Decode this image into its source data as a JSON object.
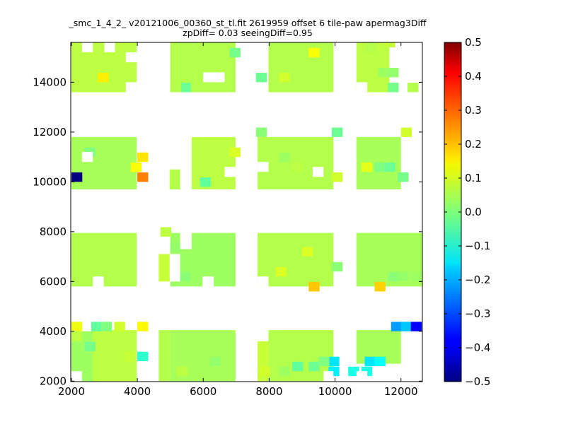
{
  "chart_data": {
    "type": "heatmap",
    "title": "_smc_1_4_2_ v20121006_00360_st_tl.fit 2619959 offset 6 tile-paw apermag3Diff",
    "subtitle": "zpDiff= 0.03 seeingDiff=0.95",
    "xlim": [
      1980,
      12650
    ],
    "ylim": [
      1980,
      15600
    ],
    "xticks": [
      2000,
      4000,
      6000,
      8000,
      10000,
      12000
    ],
    "yticks": [
      2000,
      4000,
      6000,
      8000,
      10000,
      12000,
      14000
    ],
    "grid": false,
    "colorbar": {
      "colormap": "jet",
      "range": [
        -0.5,
        0.5
      ],
      "ticks": [
        0.5,
        0.4,
        0.3,
        0.2,
        0.1,
        0.0,
        -0.1,
        -0.2,
        -0.3,
        -0.4,
        -0.5
      ],
      "tick_labels": [
        "0.5",
        "0.4",
        "0.3",
        "0.2",
        "0.1",
        "0.0",
        "−0.1",
        "−0.2",
        "−0.3",
        "−0.4",
        "−0.5"
      ]
    },
    "cell_size": [
      330,
      380
    ],
    "blocks": [
      {
        "x": [
          2000,
          3000
        ],
        "y": [
          2000,
          4000
        ],
        "value": 0.03
      },
      {
        "x": [
          2650,
          3980
        ],
        "y": [
          2000,
          4050
        ],
        "value": 0.06
      },
      {
        "x": [
          4650,
          5000
        ],
        "y": [
          2000,
          4050
        ],
        "value": 0.05
      },
      {
        "x": [
          5000,
          6980
        ],
        "y": [
          2000,
          4050
        ],
        "value": 0.04
      },
      {
        "x": [
          7650,
          7980
        ],
        "y": [
          2000,
          3600
        ],
        "value": 0.07
      },
      {
        "x": [
          7980,
          9950
        ],
        "y": [
          2000,
          4050
        ],
        "value": 0.05
      },
      {
        "x": [
          10650,
          12000
        ],
        "y": [
          2700,
          4050
        ],
        "value": 0.04
      },
      {
        "x": [
          2000,
          3980
        ],
        "y": [
          5800,
          7950
        ],
        "value": 0.05
      },
      {
        "x": [
          4650,
          5000
        ],
        "y": [
          6000,
          7100
        ],
        "value": 0.07
      },
      {
        "x": [
          5000,
          6980
        ],
        "y": [
          5800,
          7950
        ],
        "value": 0.03
      },
      {
        "x": [
          7650,
          9950
        ],
        "y": [
          5800,
          7950
        ],
        "value": 0.05
      },
      {
        "x": [
          10650,
          12650
        ],
        "y": [
          5800,
          7950
        ],
        "value": 0.04
      },
      {
        "x": [
          2000,
          3980
        ],
        "y": [
          9700,
          11800
        ],
        "value": 0.04
      },
      {
        "x": [
          4980,
          5300
        ],
        "y": [
          9700,
          10500
        ],
        "value": 0.05
      },
      {
        "x": [
          5650,
          6980
        ],
        "y": [
          9700,
          11800
        ],
        "value": 0.06
      },
      {
        "x": [
          7650,
          9950
        ],
        "y": [
          9700,
          11800
        ],
        "value": 0.05
      },
      {
        "x": [
          10650,
          12000
        ],
        "y": [
          9700,
          11800
        ],
        "value": 0.04
      },
      {
        "x": [
          2000,
          3980
        ],
        "y": [
          13600,
          15600
        ],
        "value": 0.06
      },
      {
        "x": [
          5000,
          6980
        ],
        "y": [
          13600,
          15600
        ],
        "value": 0.05
      },
      {
        "x": [
          7980,
          9950
        ],
        "y": [
          13600,
          15600
        ],
        "value": 0.05
      },
      {
        "x": [
          10650,
          11650
        ],
        "y": [
          13600,
          15600
        ],
        "value": 0.06
      }
    ],
    "holes": [
      {
        "x": [
          2650,
          2980
        ],
        "y": [
          5800,
          6200
        ]
      },
      {
        "x": [
          3650,
          3980
        ],
        "y": [
          13600,
          14000
        ]
      },
      {
        "x": [
          4980,
          5300
        ],
        "y": [
          6000,
          7100
        ]
      },
      {
        "x": [
          6000,
          6650
        ],
        "y": [
          14000,
          14400
        ]
      },
      {
        "x": [
          6650,
          6980
        ],
        "y": [
          10200,
          10600
        ]
      },
      {
        "x": [
          7650,
          7980
        ],
        "y": [
          10400,
          10800
        ]
      },
      {
        "x": [
          10650,
          10980
        ],
        "y": [
          13600,
          14000
        ]
      },
      {
        "x": [
          2000,
          2320
        ],
        "y": [
          2000,
          2400
        ]
      },
      {
        "x": [
          3650,
          3980
        ],
        "y": [
          14800,
          15200
        ]
      },
      {
        "x": [
          3000,
          3320
        ],
        "y": [
          15200,
          15600
        ]
      },
      {
        "x": [
          2320,
          2650
        ],
        "y": [
          10800,
          11200
        ]
      },
      {
        "x": [
          9320,
          9650
        ],
        "y": [
          10200,
          10600
        ]
      },
      {
        "x": [
          9650,
          9950
        ],
        "y": [
          2000,
          2400
        ]
      },
      {
        "x": [
          5980,
          6320
        ],
        "y": [
          5800,
          6200
        ]
      },
      {
        "x": [
          7650,
          7980
        ],
        "y": [
          5800,
          6200
        ]
      },
      {
        "x": [
          11650,
          12000
        ],
        "y": [
          2000,
          2400
        ]
      },
      {
        "x": [
          10650,
          10980
        ],
        "y": [
          2000,
          2400
        ]
      },
      {
        "x": [
          5300,
          5650
        ],
        "y": [
          7300,
          7950
        ]
      },
      {
        "x": [
          2320,
          2650
        ],
        "y": [
          15200,
          15600
        ]
      }
    ],
    "cells": [
      {
        "x": 2000,
        "y": 10000,
        "value": -0.5
      },
      {
        "x": 4000,
        "y": 10000,
        "value": 0.25
      },
      {
        "x": 4000,
        "y": 10800,
        "value": 0.15
      },
      {
        "x": 3800,
        "y": 10400,
        "value": 0.12
      },
      {
        "x": 9200,
        "y": 5600,
        "value": 0.18
      },
      {
        "x": 11200,
        "y": 5600,
        "value": 0.17
      },
      {
        "x": 2800,
        "y": 14000,
        "value": 0.14
      },
      {
        "x": 2000,
        "y": 4000,
        "value": 0.11
      },
      {
        "x": 4000,
        "y": 4000,
        "value": 0.13
      },
      {
        "x": 2600,
        "y": 4000,
        "value": -0.03
      },
      {
        "x": 2900,
        "y": 4000,
        "value": 0.0
      },
      {
        "x": 4000,
        "y": 2800,
        "value": -0.08
      },
      {
        "x": 9800,
        "y": 2600,
        "value": -0.15
      },
      {
        "x": 9800,
        "y": 2200,
        "value": -0.14
      },
      {
        "x": 10400,
        "y": 2200,
        "value": -0.1
      },
      {
        "x": 10800,
        "y": 2200,
        "value": -0.1
      },
      {
        "x": 10900,
        "y": 2600,
        "value": -0.15
      },
      {
        "x": 11200,
        "y": 2600,
        "value": -0.12
      },
      {
        "x": 11700,
        "y": 4000,
        "value": -0.22
      },
      {
        "x": 12000,
        "y": 4000,
        "value": -0.18
      },
      {
        "x": 12300,
        "y": 4000,
        "value": -0.38
      },
      {
        "x": 12000,
        "y": 11800,
        "value": 0.08
      },
      {
        "x": 9200,
        "y": 15000,
        "value": 0.12
      },
      {
        "x": 8300,
        "y": 14000,
        "value": 0.08
      },
      {
        "x": 7600,
        "y": 14000,
        "value": -0.02
      },
      {
        "x": 6800,
        "y": 15000,
        "value": -0.01
      },
      {
        "x": 5300,
        "y": 13600,
        "value": -0.02
      },
      {
        "x": 5000,
        "y": 13600,
        "value": 0.05
      },
      {
        "x": 9900,
        "y": 11800,
        "value": -0.02
      },
      {
        "x": 7600,
        "y": 11800,
        "value": 0.01
      },
      {
        "x": 2400,
        "y": 11000,
        "value": 0.0
      },
      {
        "x": 5900,
        "y": 9800,
        "value": -0.03
      },
      {
        "x": 5000,
        "y": 7200,
        "value": 0.02
      },
      {
        "x": 4700,
        "y": 7800,
        "value": 0.06
      },
      {
        "x": 5300,
        "y": 6000,
        "value": 0.01
      },
      {
        "x": 3100,
        "y": 6000,
        "value": 0.05
      },
      {
        "x": 9900,
        "y": 6400,
        "value": 0.01
      },
      {
        "x": 11600,
        "y": 6000,
        "value": 0.01
      },
      {
        "x": 11900,
        "y": 6000,
        "value": 0.02
      },
      {
        "x": 12300,
        "y": 6000,
        "value": 0.03
      },
      {
        "x": 8200,
        "y": 6200,
        "value": 0.09
      },
      {
        "x": 9000,
        "y": 7000,
        "value": 0.09
      },
      {
        "x": 11200,
        "y": 10400,
        "value": 0.0
      },
      {
        "x": 11500,
        "y": 10400,
        "value": -0.02
      },
      {
        "x": 11900,
        "y": 10000,
        "value": -0.01
      },
      {
        "x": 10800,
        "y": 10400,
        "value": 0.1
      },
      {
        "x": 11600,
        "y": 13600,
        "value": -0.01
      },
      {
        "x": 11300,
        "y": 14200,
        "value": 0.03
      },
      {
        "x": 11600,
        "y": 14200,
        "value": 0.02
      },
      {
        "x": 12200,
        "y": 13600,
        "value": 0.05
      },
      {
        "x": 10900,
        "y": 15200,
        "value": 0.05
      },
      {
        "x": 11500,
        "y": 15400,
        "value": 0.07
      },
      {
        "x": 3300,
        "y": 4000,
        "value": 0.08
      },
      {
        "x": 8700,
        "y": 2400,
        "value": -0.03
      },
      {
        "x": 9200,
        "y": 2400,
        "value": -0.02
      },
      {
        "x": 9500,
        "y": 2600,
        "value": 0.0
      },
      {
        "x": 7700,
        "y": 2200,
        "value": 0.08
      },
      {
        "x": 8300,
        "y": 2200,
        "value": 0.03
      },
      {
        "x": 6200,
        "y": 2600,
        "value": 0.02
      },
      {
        "x": 5200,
        "y": 2200,
        "value": 0.06
      },
      {
        "x": 2400,
        "y": 3200,
        "value": -0.01
      },
      {
        "x": 3600,
        "y": 2800,
        "value": 0.07
      },
      {
        "x": 2000,
        "y": 3600,
        "value": 0.06
      },
      {
        "x": 6800,
        "y": 11000,
        "value": 0.09
      },
      {
        "x": 8300,
        "y": 10800,
        "value": 0.03
      },
      {
        "x": 8700,
        "y": 10400,
        "value": 0.06
      },
      {
        "x": 9900,
        "y": 10000,
        "value": 0.08
      }
    ]
  }
}
